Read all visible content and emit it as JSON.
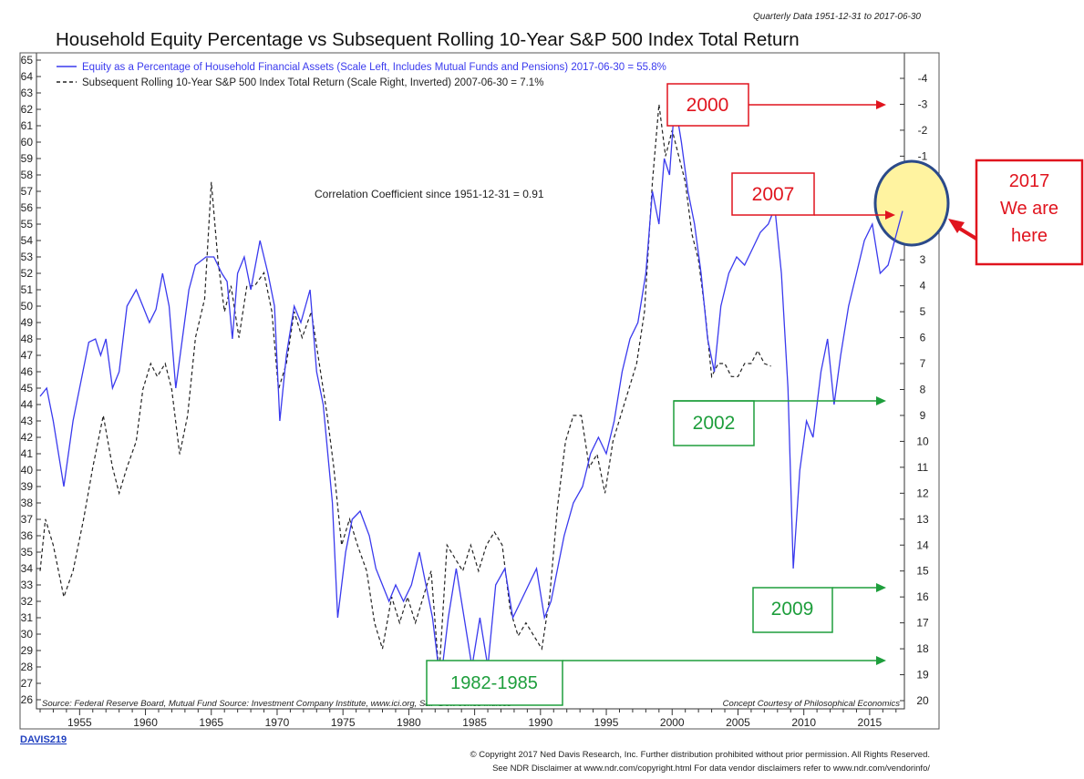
{
  "header": {
    "data_range": "Quarterly Data 1951-12-31 to 2017-06-30",
    "title": "Household Equity Percentage vs Subsequent Rolling 10-Year S&P 500 Index Total Return"
  },
  "legend": {
    "series1": "Equity as a Percentage of Household Financial Assets (Scale Left, Includes Mutual Funds and Pensions) 2017-06-30 = 55.8%",
    "series2": "Subsequent Rolling 10-Year S&P 500 Index Total Return (Scale Right, Inverted) 2007-06-30 = 7.1%"
  },
  "correlation_text": "Correlation Coefficient since 1951-12-31 = 0.91",
  "source_text": "Source: Federal Reserve Board, Mutual Fund Source: Investment Company Institute, www.ici.org, S&P Dow Jones Indices",
  "courtesy_text": "Concept Courtesy of Philosophical Economics",
  "chart_code": "DAVIS219",
  "copyright": [
    "© Copyright 2017 Ned Davis Research, Inc. Further distribution prohibited without prior permission. All Rights Reserved.",
    "See NDR Disclaimer at www.ndr.com/copyright.html   For data vendor disclaimers refer to www.ndr.com/vendorinfo/"
  ],
  "annotations": {
    "a2000": "2000",
    "a2007": "2007",
    "a2002": "2002",
    "a2009": "2009",
    "a1982": "1982-1985",
    "a2017_lines": [
      "2017",
      "We are",
      "here"
    ]
  },
  "colors": {
    "equity_line": "#3a3aee",
    "return_line": "#222222",
    "red": "#e0141e",
    "green": "#1e9e3c",
    "highlight_circle": "#2b4a8a",
    "highlight_fill": "#fff3a0"
  },
  "chart_data": {
    "type": "line",
    "x_range": [
      1952,
      2017.5
    ],
    "x_ticks": [
      1955,
      1960,
      1965,
      1970,
      1975,
      1980,
      1985,
      1990,
      1995,
      2000,
      2005,
      2010,
      2015
    ],
    "y_left_range": [
      26,
      65
    ],
    "y_right_range": [
      -4,
      20
    ],
    "y_right_inverted": true,
    "series": [
      {
        "name": "Equity as a Percentage of Household Financial Assets (Scale Left, Includes Mutual Funds and Pensions) 2017-06-30 = 55.8%",
        "axis": "left",
        "style": "solid",
        "points": [
          [
            1952,
            44.5
          ],
          [
            1952.5,
            45
          ],
          [
            1953,
            43
          ],
          [
            1953.8,
            39
          ],
          [
            1954.5,
            43
          ],
          [
            1955,
            45
          ],
          [
            1955.7,
            47.8
          ],
          [
            1956.2,
            48
          ],
          [
            1956.6,
            47
          ],
          [
            1957,
            48
          ],
          [
            1957.5,
            45
          ],
          [
            1958,
            46
          ],
          [
            1958.6,
            50
          ],
          [
            1959.3,
            51
          ],
          [
            1959.8,
            50
          ],
          [
            1960.3,
            49
          ],
          [
            1960.8,
            49.8
          ],
          [
            1961.3,
            52
          ],
          [
            1961.8,
            50
          ],
          [
            1962.3,
            45
          ],
          [
            1962.8,
            48
          ],
          [
            1963.3,
            51
          ],
          [
            1963.8,
            52.5
          ],
          [
            1964.6,
            53
          ],
          [
            1965.2,
            53
          ],
          [
            1965.8,
            52
          ],
          [
            1966.2,
            51.5
          ],
          [
            1966.6,
            48
          ],
          [
            1967,
            52
          ],
          [
            1967.5,
            53
          ],
          [
            1968,
            51
          ],
          [
            1968.7,
            54
          ],
          [
            1969.3,
            52
          ],
          [
            1969.8,
            50
          ],
          [
            1970.2,
            43
          ],
          [
            1970.7,
            47
          ],
          [
            1971.3,
            50
          ],
          [
            1971.8,
            49
          ],
          [
            1972.5,
            51
          ],
          [
            1973,
            46
          ],
          [
            1973.5,
            44
          ],
          [
            1974.2,
            38
          ],
          [
            1974.6,
            31
          ],
          [
            1975.2,
            35
          ],
          [
            1975.7,
            37
          ],
          [
            1976.3,
            37.5
          ],
          [
            1977,
            36
          ],
          [
            1977.5,
            34
          ],
          [
            1978,
            33
          ],
          [
            1978.5,
            32
          ],
          [
            1979,
            33
          ],
          [
            1979.6,
            32
          ],
          [
            1980.2,
            33
          ],
          [
            1980.8,
            35
          ],
          [
            1981.3,
            33
          ],
          [
            1981.8,
            31
          ],
          [
            1982.4,
            27
          ],
          [
            1983,
            31
          ],
          [
            1983.6,
            34
          ],
          [
            1984.2,
            31
          ],
          [
            1984.8,
            28
          ],
          [
            1985.4,
            31
          ],
          [
            1986,
            28
          ],
          [
            1986.6,
            33
          ],
          [
            1987.3,
            34
          ],
          [
            1987.9,
            31
          ],
          [
            1988.5,
            32
          ],
          [
            1989.1,
            33
          ],
          [
            1989.7,
            34
          ],
          [
            1990.3,
            31
          ],
          [
            1990.8,
            32
          ],
          [
            1991.3,
            34
          ],
          [
            1991.8,
            36
          ],
          [
            1992.5,
            38
          ],
          [
            1993.2,
            39
          ],
          [
            1993.8,
            41
          ],
          [
            1994.4,
            42
          ],
          [
            1995,
            41
          ],
          [
            1995.6,
            43
          ],
          [
            1996.2,
            46
          ],
          [
            1996.8,
            48
          ],
          [
            1997.4,
            49
          ],
          [
            1998,
            52
          ],
          [
            1998.5,
            57
          ],
          [
            1999,
            55
          ],
          [
            1999.4,
            59
          ],
          [
            1999.8,
            58
          ],
          [
            2000.2,
            62.5
          ],
          [
            2000.7,
            60
          ],
          [
            2001.2,
            57
          ],
          [
            2001.7,
            55
          ],
          [
            2002.2,
            52
          ],
          [
            2002.7,
            48
          ],
          [
            2003.2,
            46
          ],
          [
            2003.7,
            50
          ],
          [
            2004.3,
            52
          ],
          [
            2004.9,
            53
          ],
          [
            2005.5,
            52.5
          ],
          [
            2006.1,
            53.5
          ],
          [
            2006.7,
            54.5
          ],
          [
            2007.3,
            55
          ],
          [
            2007.8,
            56
          ],
          [
            2008.3,
            52
          ],
          [
            2008.8,
            45
          ],
          [
            2009.2,
            34
          ],
          [
            2009.7,
            40
          ],
          [
            2010.2,
            43
          ],
          [
            2010.7,
            42
          ],
          [
            2011.3,
            46
          ],
          [
            2011.8,
            48
          ],
          [
            2012.3,
            44
          ],
          [
            2012.8,
            47
          ],
          [
            2013.4,
            50
          ],
          [
            2014,
            52
          ],
          [
            2014.6,
            54
          ],
          [
            2015.2,
            55
          ],
          [
            2015.8,
            52
          ],
          [
            2016.4,
            52.5
          ],
          [
            2016.9,
            54
          ],
          [
            2017.5,
            55.8
          ]
        ]
      },
      {
        "name": "Subsequent Rolling 10-Year S&P 500 Index Total Return (Scale Right, Inverted) 2007-06-30 = 7.1%",
        "axis": "right",
        "style": "dashed",
        "points": [
          [
            1952,
            15
          ],
          [
            1952.4,
            13
          ],
          [
            1953,
            14
          ],
          [
            1953.8,
            16
          ],
          [
            1954.5,
            15
          ],
          [
            1955.3,
            13
          ],
          [
            1956,
            11
          ],
          [
            1956.8,
            9
          ],
          [
            1957.5,
            11
          ],
          [
            1958,
            12
          ],
          [
            1958.6,
            11
          ],
          [
            1959.3,
            10
          ],
          [
            1959.8,
            8
          ],
          [
            1960.4,
            7
          ],
          [
            1960.9,
            7.5
          ],
          [
            1961.5,
            7
          ],
          [
            1962,
            8
          ],
          [
            1962.6,
            10.5
          ],
          [
            1963.2,
            9
          ],
          [
            1963.8,
            6
          ],
          [
            1964.5,
            4.5
          ],
          [
            1965,
            0
          ],
          [
            1965.5,
            3
          ],
          [
            1966,
            5
          ],
          [
            1966.5,
            4
          ],
          [
            1967.1,
            6
          ],
          [
            1967.7,
            4
          ],
          [
            1968.3,
            4
          ],
          [
            1969,
            3.5
          ],
          [
            1969.6,
            5
          ],
          [
            1970.1,
            8
          ],
          [
            1970.7,
            7
          ],
          [
            1971.3,
            5
          ],
          [
            1971.9,
            6
          ],
          [
            1972.6,
            5
          ],
          [
            1973.2,
            7
          ],
          [
            1973.8,
            9
          ],
          [
            1974.3,
            11
          ],
          [
            1974.9,
            14
          ],
          [
            1975.5,
            13
          ],
          [
            1976.1,
            14
          ],
          [
            1976.8,
            15
          ],
          [
            1977.4,
            17
          ],
          [
            1978,
            18
          ],
          [
            1978.7,
            16
          ],
          [
            1979.3,
            17
          ],
          [
            1979.9,
            16
          ],
          [
            1980.5,
            17
          ],
          [
            1981.1,
            16
          ],
          [
            1981.7,
            15
          ],
          [
            1982.3,
            19
          ],
          [
            1982.9,
            14
          ],
          [
            1983.5,
            14.5
          ],
          [
            1984.1,
            15
          ],
          [
            1984.7,
            14
          ],
          [
            1985.3,
            15
          ],
          [
            1985.9,
            14
          ],
          [
            1986.5,
            13.5
          ],
          [
            1987.1,
            14
          ],
          [
            1987.7,
            16.5
          ],
          [
            1988.3,
            17.5
          ],
          [
            1988.9,
            17
          ],
          [
            1989.5,
            17.5
          ],
          [
            1990.1,
            18
          ],
          [
            1990.7,
            16
          ],
          [
            1991.3,
            12.5
          ],
          [
            1991.9,
            10
          ],
          [
            1992.5,
            9
          ],
          [
            1993.1,
            9
          ],
          [
            1993.7,
            11
          ],
          [
            1994.3,
            10.5
          ],
          [
            1994.9,
            12
          ],
          [
            1995.5,
            10
          ],
          [
            1996.1,
            9
          ],
          [
            1996.7,
            8
          ],
          [
            1997.3,
            7
          ],
          [
            1997.9,
            5
          ],
          [
            1998.5,
            0
          ],
          [
            1999,
            -3
          ],
          [
            1999.5,
            -1
          ],
          [
            2000,
            -2
          ],
          [
            2000.5,
            -1
          ],
          [
            2001,
            0
          ],
          [
            2001.5,
            2
          ],
          [
            2002,
            3
          ],
          [
            2002.5,
            5
          ],
          [
            2003,
            7.5
          ],
          [
            2003.5,
            7
          ],
          [
            2004,
            7
          ],
          [
            2004.5,
            7.5
          ],
          [
            2005,
            7.5
          ],
          [
            2005.5,
            7
          ],
          [
            2006,
            7
          ],
          [
            2006.5,
            6.5
          ],
          [
            2007,
            7
          ],
          [
            2007.5,
            7.1
          ]
        ]
      }
    ]
  }
}
